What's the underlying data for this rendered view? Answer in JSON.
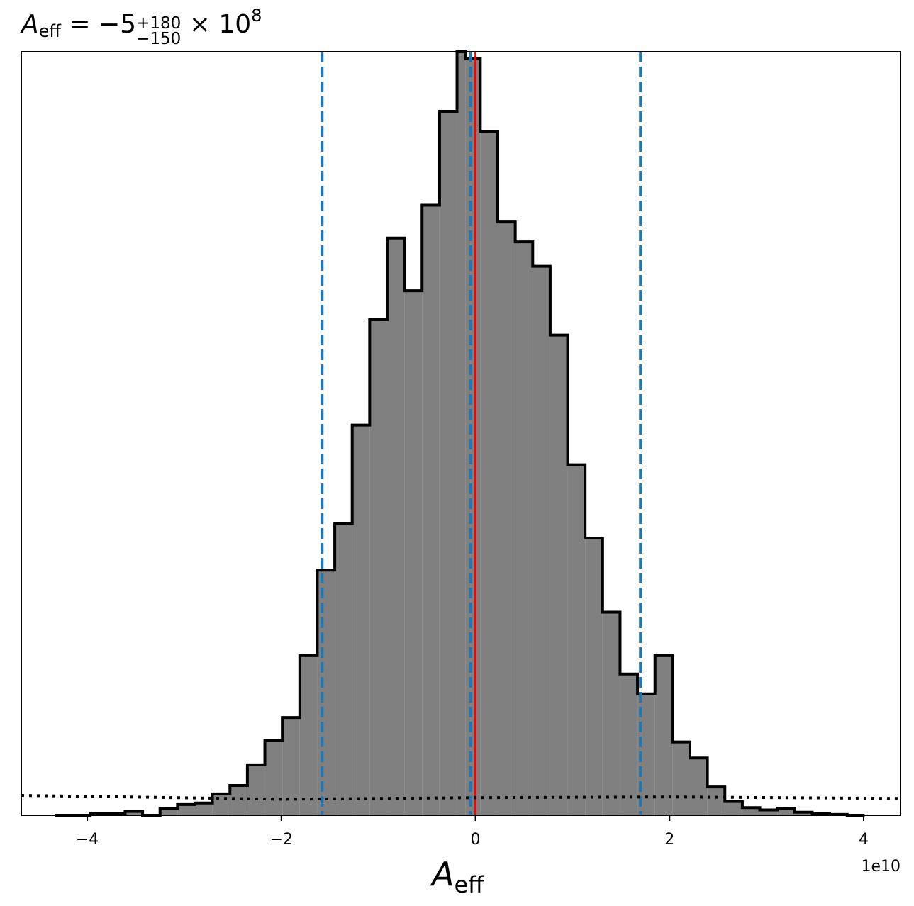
{
  "chart_data": {
    "type": "histogram",
    "title": {
      "symbol": "A",
      "symbol_sub": "eff",
      "equals": " = ",
      "value": "−5",
      "upper": "+180",
      "lower": "−150",
      "times": " × 10",
      "exponent": "8"
    },
    "xlabel": {
      "symbol": "A",
      "sub": "eff"
    },
    "x_offset_label": "1e10",
    "xlim": [
      -4.68,
      4.38
    ],
    "ylim": [
      0,
      1.0
    ],
    "xticks": [
      {
        "value": -4,
        "label": "−4"
      },
      {
        "value": -2,
        "label": "−2"
      },
      {
        "value": 0,
        "label": "0"
      },
      {
        "value": 2,
        "label": "2"
      },
      {
        "value": 4,
        "label": "4"
      }
    ],
    "bins": {
      "edges": [
        -4.33,
        -4.15,
        -3.97,
        -3.79,
        -3.61,
        -3.43,
        -3.25,
        -3.07,
        -2.89,
        -2.71,
        -2.53,
        -2.35,
        -2.17,
        -1.99,
        -1.81,
        -1.63,
        -1.45,
        -1.27,
        -1.09,
        -0.91,
        -0.73,
        -0.55,
        -0.37,
        -0.19,
        -0.1,
        0.05,
        0.23,
        0.41,
        0.59,
        0.77,
        0.95,
        1.13,
        1.31,
        1.49,
        1.67,
        1.85,
        2.03,
        2.21,
        2.39,
        2.57,
        2.75,
        2.93,
        3.11,
        3.29,
        3.47,
        3.65,
        3.83,
        4.01
      ],
      "heights": [
        0.0,
        0.0,
        0.002,
        0.002,
        0.005,
        0.0,
        0.009,
        0.014,
        0.016,
        0.028,
        0.039,
        0.066,
        0.098,
        0.128,
        0.209,
        0.321,
        0.382,
        0.511,
        0.649,
        0.756,
        0.687,
        0.799,
        0.922,
        1.0,
        0.991,
        0.896,
        0.777,
        0.751,
        0.719,
        0.629,
        0.459,
        0.363,
        0.266,
        0.185,
        0.159,
        0.209,
        0.096,
        0.075,
        0.037,
        0.018,
        0.01,
        0.007,
        0.009,
        0.004,
        0.002,
        0.001,
        0.0
      ]
    },
    "vlines": {
      "median": {
        "x": 0.0,
        "color": "#ff0000",
        "style": "solid"
      },
      "quantiles": {
        "x": [
          -1.58,
          -0.05,
          1.7
        ],
        "color": "#1f77b4",
        "style": "dashed"
      }
    },
    "prior_line": {
      "style": "dotted",
      "color": "#000000",
      "x": [
        -4.68,
        -2.0,
        0.0,
        2.0,
        4.38
      ],
      "y": [
        0.026,
        0.021,
        0.023,
        0.024,
        0.022
      ]
    },
    "hist_fill_color": "#808080",
    "hist_edge_color": "#000000"
  }
}
